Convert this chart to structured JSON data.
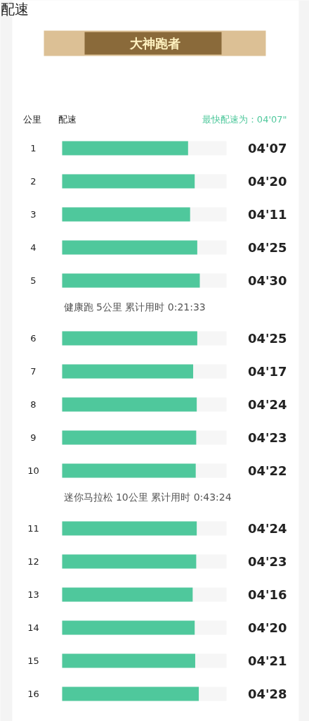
{
  "chart_data": {
    "type": "bar",
    "orientation": "horizontal",
    "title": "配速",
    "xlabel": "配速",
    "ylabel": "公里",
    "categories": [
      "1",
      "2",
      "3",
      "4",
      "5",
      "6",
      "7",
      "8",
      "9",
      "10",
      "11",
      "12",
      "13",
      "14",
      "15",
      "16"
    ],
    "values": [
      4.117,
      4.333,
      4.183,
      4.417,
      4.5,
      4.417,
      4.283,
      4.4,
      4.383,
      4.367,
      4.4,
      4.383,
      4.267,
      4.333,
      4.35,
      4.467
    ],
    "value_labels": [
      "04'07",
      "04'20",
      "04'11",
      "04'25",
      "04'30",
      "04'25",
      "04'17",
      "04'24",
      "04'23",
      "04'22",
      "04'24",
      "04'23",
      "04'16",
      "04'20",
      "04'21",
      "04'28"
    ],
    "color": "#4fc89c",
    "tick_labels": "y",
    "annotations": [
      "大神跑者",
      "最快配速为：04'07\"",
      "健康跑 5公里 累计用时 0:21:33",
      "迷你马拉松 10公里 累计用时 0:43:24"
    ]
  }
}
